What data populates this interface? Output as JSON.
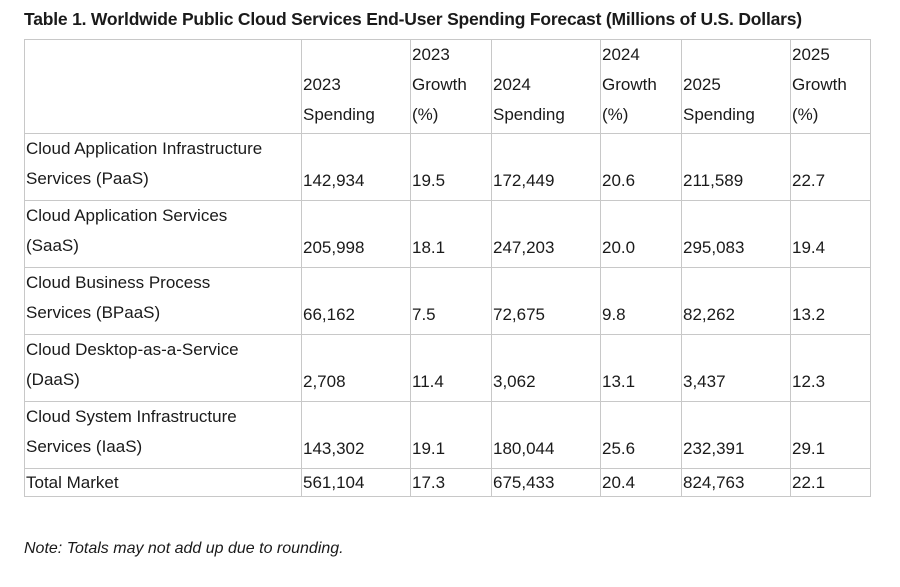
{
  "title": "Table 1. Worldwide Public Cloud Services End-User Spending Forecast (Millions of U.S. Dollars)",
  "columns": [
    {
      "line1": "2023",
      "line2": "Spending",
      "line3": ""
    },
    {
      "line1": "2023",
      "line2": "Growth",
      "line3": "(%)"
    },
    {
      "line1": "2024",
      "line2": "Spending",
      "line3": ""
    },
    {
      "line1": "2024",
      "line2": "Growth",
      "line3": "(%)"
    },
    {
      "line1": "2025",
      "line2": "Spending",
      "line3": ""
    },
    {
      "line1": "2025",
      "line2": "Growth",
      "line3": "(%)"
    }
  ],
  "rows": [
    {
      "label1": "Cloud Application Infrastructure",
      "label2": "Services (PaaS)",
      "values": [
        "142,934",
        "19.5",
        "172,449",
        "20.6",
        "211,589",
        "22.7"
      ]
    },
    {
      "label1": "Cloud Application Services",
      "label2": "(SaaS)",
      "values": [
        "205,998",
        "18.1",
        "247,203",
        "20.0",
        "295,083",
        "19.4"
      ]
    },
    {
      "label1": "Cloud Business Process",
      "label2": "Services (BPaaS)",
      "values": [
        "66,162",
        "7.5",
        "72,675",
        "9.8",
        "82,262",
        "13.2"
      ]
    },
    {
      "label1": "Cloud Desktop-as-a-Service",
      "label2": "(DaaS)",
      "values": [
        "2,708",
        "11.4",
        "3,062",
        "13.1",
        "3,437",
        "12.3"
      ]
    },
    {
      "label1": "Cloud System Infrastructure",
      "label2": "Services (IaaS)",
      "values": [
        "143,302",
        "19.1",
        "180,044",
        "25.6",
        "232,391",
        "29.1"
      ]
    }
  ],
  "total": {
    "label": "Total Market",
    "values": [
      "561,104",
      "17.3",
      "675,433",
      "20.4",
      "824,763",
      "22.1"
    ]
  },
  "note": "Note: Totals may not add up due to rounding."
}
